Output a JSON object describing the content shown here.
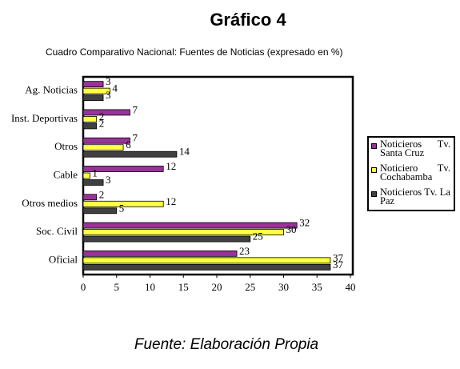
{
  "chart_data": {
    "type": "bar",
    "orientation": "horizontal",
    "title": "Gráfico 4",
    "subtitle": "Cuadro Comparativo Nacional:  Fuentes de Noticias (expresado en %)",
    "source": "Fuente: Elaboración Propia",
    "categories": [
      "Ag. Noticias",
      "Inst. Deportivas",
      "Otros",
      "Cable",
      "Otros medios",
      "Soc. Civil",
      "Oficial"
    ],
    "series": [
      {
        "name": "Noticieros Tv. Santa Cruz",
        "color": "#993399",
        "values": [
          3,
          7,
          7,
          12,
          2,
          32,
          23
        ]
      },
      {
        "name": "Noticiero Tv. Cochabamba",
        "color": "#ffff44",
        "values": [
          4,
          2,
          6,
          1,
          12,
          30,
          37
        ]
      },
      {
        "name": "Noticieros Tv. La Paz",
        "color": "#404040",
        "values": [
          3,
          2,
          14,
          3,
          5,
          25,
          37
        ]
      }
    ],
    "xlim": [
      0,
      40
    ],
    "xticks": [
      0,
      5,
      10,
      15,
      20,
      25,
      30,
      35,
      40
    ],
    "grid": false,
    "legend": "right"
  }
}
